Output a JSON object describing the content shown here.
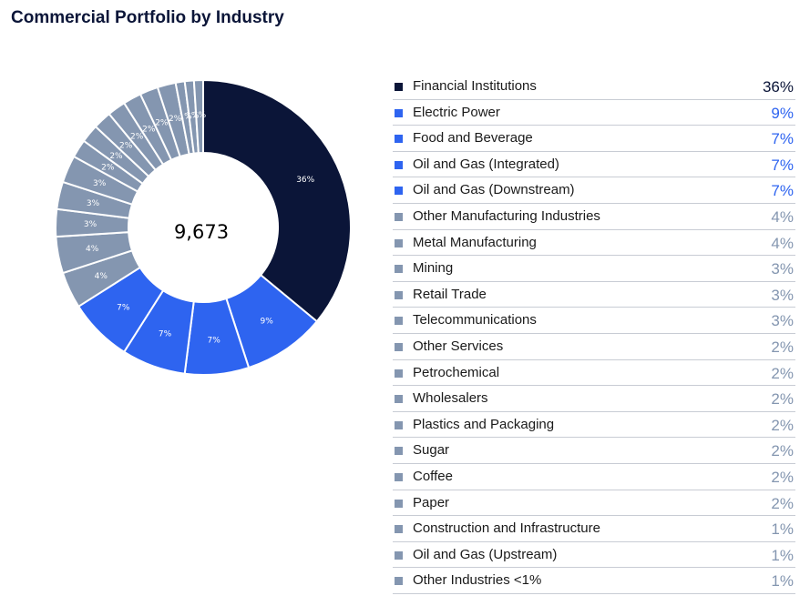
{
  "chart_data": {
    "type": "pie",
    "title": "Commercial Portfolio by Industry",
    "center_total": "9,673",
    "categories": [
      "Financial Institutions",
      "Electric Power",
      "Food and Beverage",
      "Oil and Gas (Integrated)",
      "Oil and Gas (Downstream)",
      "Other Manufacturing Industries",
      "Metal Manufacturing",
      "Mining",
      "Retail Trade",
      "Telecommunications",
      "Other Services",
      "Petrochemical",
      "Wholesalers",
      "Plastics and Packaging",
      "Sugar",
      "Coffee",
      "Paper",
      "Construction and Infrastructure",
      "Oil and Gas (Upstream)",
      "Other Industries <1%"
    ],
    "values": [
      36,
      9,
      7,
      7,
      7,
      4,
      4,
      3,
      3,
      3,
      2,
      2,
      2,
      2,
      2,
      2,
      2,
      1,
      1,
      1
    ],
    "value_labels": [
      "36%",
      "9%",
      "7%",
      "7%",
      "7%",
      "4%",
      "4%",
      "3%",
      "3%",
      "3%",
      "2%",
      "2%",
      "2%",
      "2%",
      "2%",
      "2%",
      "2%",
      "1%",
      "1%",
      "1%"
    ],
    "slice_labels": [
      "36%",
      "9%",
      "7%",
      "7%",
      "7%",
      "4%",
      "4%",
      "3%",
      "3%",
      "3%",
      "2%",
      "2%",
      "2%",
      "2%",
      "2%",
      "2%",
      "2%",
      "1%",
      "1%",
      "1%"
    ],
    "colors": {
      "dark": "#0b1538",
      "blue": "#2e64f0",
      "gray": "#8496b0",
      "value_dark": "#0b1538",
      "value_blue": "#2e64f0",
      "value_gray": "#8496b0"
    },
    "color_groups": [
      "dark",
      "blue",
      "blue",
      "blue",
      "blue",
      "gray",
      "gray",
      "gray",
      "gray",
      "gray",
      "gray",
      "gray",
      "gray",
      "gray",
      "gray",
      "gray",
      "gray",
      "gray",
      "gray",
      "gray"
    ],
    "legend_position": "right"
  }
}
